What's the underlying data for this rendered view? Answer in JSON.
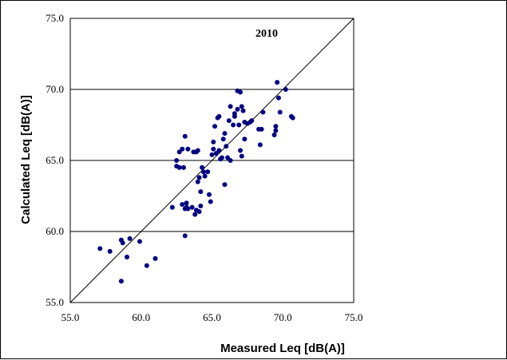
{
  "chart_data": {
    "type": "scatter",
    "title": "2010",
    "xlabel": "Measured Leq [dB(A)]",
    "ylabel": "Calculated Leq [dB(A)]",
    "xlim": [
      55.0,
      75.0
    ],
    "ylim": [
      55.0,
      75.0
    ],
    "xticks": [
      "55.0",
      "60.0",
      "65.0",
      "70.0",
      "75.0"
    ],
    "yticks": [
      "55.0",
      "60.0",
      "65.0",
      "70.0",
      "75.0"
    ],
    "grid": "horizontal",
    "reference_line": "y = x",
    "point_color": "#000080",
    "series": [
      {
        "points": [
          [
            57.1,
            58.8
          ],
          [
            57.8,
            58.6
          ],
          [
            58.6,
            59.4
          ],
          [
            58.7,
            59.2
          ],
          [
            58.6,
            56.5
          ],
          [
            59.0,
            58.2
          ],
          [
            59.2,
            59.5
          ],
          [
            59.9,
            59.3
          ],
          [
            60.4,
            57.6
          ],
          [
            61.0,
            58.1
          ],
          [
            62.2,
            61.7
          ],
          [
            62.5,
            65.0
          ],
          [
            62.5,
            64.6
          ],
          [
            62.7,
            64.5
          ],
          [
            62.7,
            65.6
          ],
          [
            62.9,
            65.8
          ],
          [
            63.0,
            64.5
          ],
          [
            62.9,
            61.9
          ],
          [
            63.1,
            61.6
          ],
          [
            63.2,
            62.0
          ],
          [
            63.2,
            61.7
          ],
          [
            63.3,
            61.6
          ],
          [
            63.1,
            59.7
          ],
          [
            63.1,
            66.7
          ],
          [
            63.3,
            65.8
          ],
          [
            63.6,
            61.7
          ],
          [
            63.7,
            65.6
          ],
          [
            63.8,
            61.2
          ],
          [
            63.9,
            61.5
          ],
          [
            63.9,
            65.6
          ],
          [
            64.0,
            65.7
          ],
          [
            64.0,
            63.5
          ],
          [
            64.1,
            61.4
          ],
          [
            64.1,
            63.8
          ],
          [
            64.2,
            61.8
          ],
          [
            64.2,
            62.8
          ],
          [
            64.3,
            64.5
          ],
          [
            64.4,
            64.2
          ],
          [
            64.5,
            63.9
          ],
          [
            64.7,
            64.2
          ],
          [
            64.8,
            62.6
          ],
          [
            64.9,
            62.1
          ],
          [
            65.0,
            65.4
          ],
          [
            65.1,
            65.8
          ],
          [
            65.1,
            66.3
          ],
          [
            65.2,
            67.4
          ],
          [
            65.3,
            65.5
          ],
          [
            65.4,
            68.0
          ],
          [
            65.5,
            68.1
          ],
          [
            65.5,
            65.7
          ],
          [
            65.6,
            65.1
          ],
          [
            65.7,
            65.2
          ],
          [
            65.8,
            66.5
          ],
          [
            65.9,
            63.3
          ],
          [
            65.9,
            66.9
          ],
          [
            66.0,
            66.0
          ],
          [
            66.1,
            65.2
          ],
          [
            66.2,
            67.8
          ],
          [
            66.3,
            68.8
          ],
          [
            66.3,
            65.0
          ],
          [
            66.5,
            67.5
          ],
          [
            66.6,
            68.1
          ],
          [
            66.6,
            68.3
          ],
          [
            66.8,
            69.9
          ],
          [
            66.8,
            68.6
          ],
          [
            66.9,
            67.5
          ],
          [
            67.0,
            65.7
          ],
          [
            67.0,
            69.8
          ],
          [
            67.1,
            65.3
          ],
          [
            67.1,
            68.8
          ],
          [
            67.2,
            68.5
          ],
          [
            67.3,
            66.5
          ],
          [
            67.3,
            67.7
          ],
          [
            67.5,
            67.6
          ],
          [
            67.7,
            67.7
          ],
          [
            67.8,
            67.8
          ],
          [
            68.3,
            67.2
          ],
          [
            68.4,
            66.1
          ],
          [
            68.5,
            67.2
          ],
          [
            68.6,
            68.4
          ],
          [
            69.4,
            66.8
          ],
          [
            69.5,
            67.4
          ],
          [
            69.5,
            67.1
          ],
          [
            69.6,
            70.5
          ],
          [
            69.7,
            69.4
          ],
          [
            69.8,
            68.4
          ],
          [
            70.2,
            70.0
          ],
          [
            70.6,
            68.1
          ],
          [
            70.7,
            68.0
          ]
        ]
      }
    ]
  }
}
